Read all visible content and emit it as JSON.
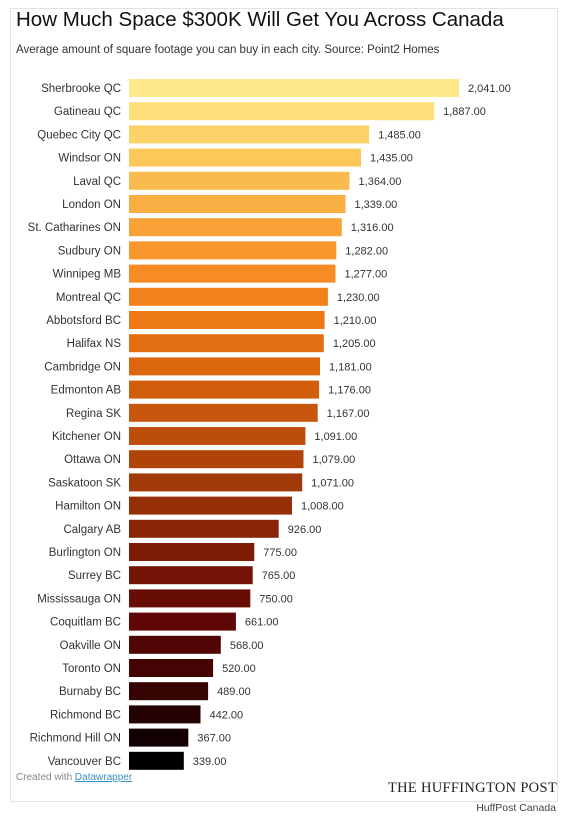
{
  "chart_data": {
    "type": "bar",
    "orientation": "horizontal",
    "title": "How Much Space $300K Will Get You Across Canada",
    "subtitle": "Average amount of square footage you can buy in each city. Source: Point2 Homes",
    "categories": [
      "Sherbrooke QC",
      "Gatineau QC",
      "Quebec City QC",
      "Windsor ON",
      "Laval QC",
      "London ON",
      "St. Catharines ON",
      "Sudbury ON",
      "Winnipeg MB",
      "Montreal QC",
      "Abbotsford BC",
      "Halifax NS",
      "Cambridge ON",
      "Edmonton AB",
      "Regina SK",
      "Kitchener ON",
      "Ottawa ON",
      "Saskatoon SK",
      "Hamilton ON",
      "Calgary AB",
      "Burlington ON",
      "Surrey BC",
      "Mississauga ON",
      "Coquitlam BC",
      "Oakville ON",
      "Toronto ON",
      "Burnaby BC",
      "Richmond BC",
      "Richmond Hill ON",
      "Vancouver BC"
    ],
    "values": [
      2041,
      1887,
      1485,
      1435,
      1364,
      1339,
      1316,
      1282,
      1277,
      1230,
      1210,
      1205,
      1181,
      1176,
      1167,
      1091,
      1079,
      1071,
      1008,
      926,
      775,
      765,
      750,
      661,
      568,
      520,
      489,
      442,
      367,
      339
    ],
    "value_labels": [
      "2,041.00",
      "1,887.00",
      "1,485.00",
      "1,435.00",
      "1,364.00",
      "1,339.00",
      "1,316.00",
      "1,282.00",
      "1,277.00",
      "1,230.00",
      "1,210.00",
      "1,205.00",
      "1,181.00",
      "1,176.00",
      "1,167.00",
      "1,091.00",
      "1,079.00",
      "1,071.00",
      "1,008.00",
      "926.00",
      "775.00",
      "765.00",
      "750.00",
      "661.00",
      "568.00",
      "520.00",
      "489.00",
      "442.00",
      "367.00",
      "339.00"
    ],
    "xlim": [
      0,
      2041
    ],
    "color_scale": [
      "#fde98a",
      "#fcc95a",
      "#f8a43a",
      "#f5841c",
      "#e0690f",
      "#c3520b",
      "#9c3508",
      "#7a1806",
      "#5c0606",
      "#360303",
      "#000000"
    ],
    "grid": false,
    "legend": "none"
  },
  "footer": {
    "credit_prefix": "Created with",
    "credit_link": "Datawrapper",
    "brand": "THE HUFFINGTON POST",
    "source_tag": "HuffPost Canada"
  }
}
